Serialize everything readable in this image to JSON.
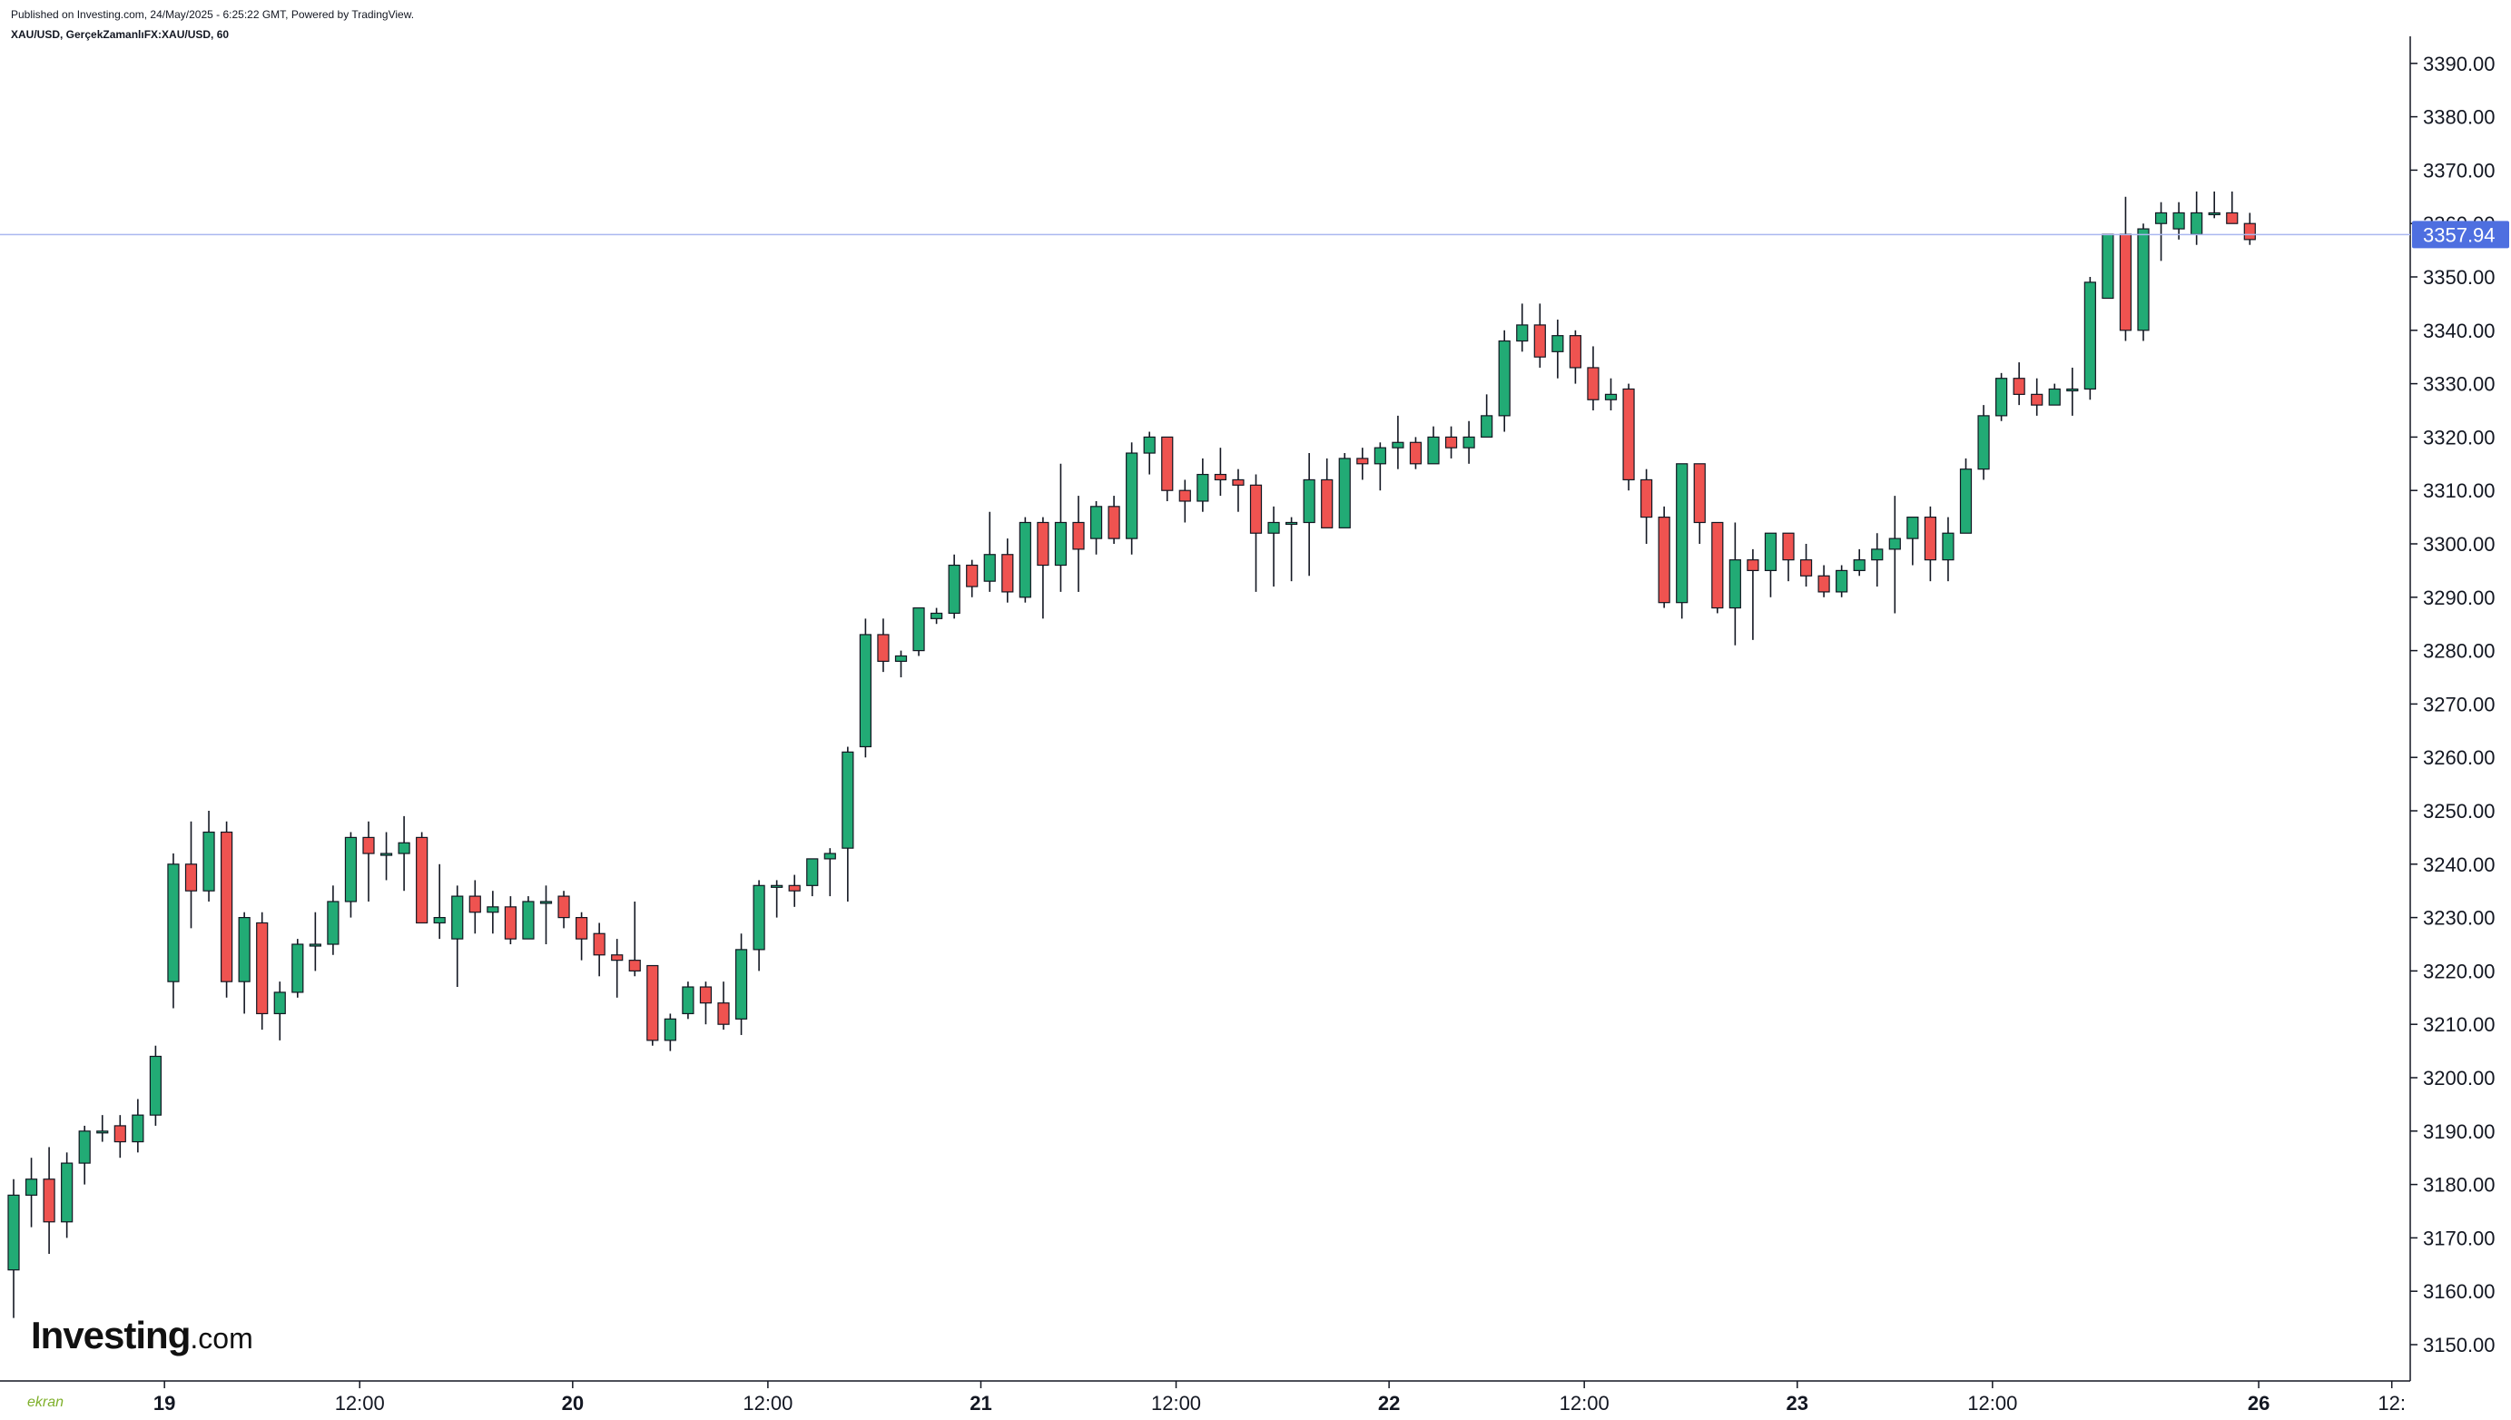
{
  "header": {
    "published": "Published on Investing.com, 24/May/2025 - 6:25:22 GMT, Powered by TradingView.",
    "symbol": "XAU/USD, GerçekZamanlıFX:XAU/USD, 60"
  },
  "logo": {
    "brand": "Investing",
    "suffix": ".com"
  },
  "watermark": "ekran",
  "colors": {
    "up": "#22ab75",
    "down": "#ef5350",
    "wick": "#131722",
    "price_line": "#aab7f0",
    "price_badge": "#4e6fe0"
  },
  "chart_data": {
    "type": "candlestick",
    "symbol": "XAU/USD",
    "interval": "60",
    "last_price": 3357.94,
    "last_price_label": "3357.94",
    "y_axis": {
      "ylim": [
        3145,
        3392
      ],
      "ticks": [
        "3150.00",
        "3160.00",
        "3170.00",
        "3180.00",
        "3190.00",
        "3200.00",
        "3210.00",
        "3220.00",
        "3230.00",
        "3240.00",
        "3250.00",
        "3260.00",
        "3270.00",
        "3280.00",
        "3290.00",
        "3300.00",
        "3310.00",
        "3320.00",
        "3330.00",
        "3340.00",
        "3350.00",
        "3360.00",
        "3370.00",
        "3380.00",
        "3390.00"
      ]
    },
    "x_axis": {
      "labels": [
        {
          "label": "19",
          "at": 8.5,
          "bold": true
        },
        {
          "label": "12:00",
          "at": 19.5,
          "bold": false
        },
        {
          "label": "20",
          "at": 31.5,
          "bold": true
        },
        {
          "label": "12:00",
          "at": 42.5,
          "bold": false
        },
        {
          "label": "21",
          "at": 54.5,
          "bold": true
        },
        {
          "label": "12:00",
          "at": 65.5,
          "bold": false
        },
        {
          "label": "22",
          "at": 77.5,
          "bold": true
        },
        {
          "label": "12:00",
          "at": 88.5,
          "bold": false
        },
        {
          "label": "23",
          "at": 100.5,
          "bold": true
        },
        {
          "label": "12:00",
          "at": 111.5,
          "bold": false
        },
        {
          "label": "26",
          "at": 126.5,
          "bold": true
        },
        {
          "label": "12:",
          "at": 134,
          "bold": false
        }
      ]
    },
    "ohlc": [
      [
        3164,
        3181,
        3155,
        3178
      ],
      [
        3178,
        3185,
        3172,
        3181
      ],
      [
        3181,
        3187,
        3167,
        3173
      ],
      [
        3173,
        3186,
        3170,
        3184
      ],
      [
        3184,
        3191,
        3180,
        3190
      ],
      [
        3190,
        3193,
        3188,
        3190
      ],
      [
        3191,
        3193,
        3185,
        3188
      ],
      [
        3188,
        3196,
        3186,
        3193
      ],
      [
        3193,
        3206,
        3191,
        3204
      ],
      [
        3218,
        3242,
        3213,
        3240
      ],
      [
        3240,
        3248,
        3228,
        3235
      ],
      [
        3235,
        3250,
        3233,
        3246
      ],
      [
        3246,
        3248,
        3215,
        3218
      ],
      [
        3218,
        3231,
        3212,
        3230
      ],
      [
        3229,
        3231,
        3209,
        3212
      ],
      [
        3212,
        3218,
        3207,
        3216
      ],
      [
        3216,
        3226,
        3215,
        3225
      ],
      [
        3225,
        3231,
        3220,
        3225
      ],
      [
        3225,
        3236,
        3223,
        3233
      ],
      [
        3233,
        3246,
        3230,
        3245
      ],
      [
        3245,
        3248,
        3233,
        3242
      ],
      [
        3242,
        3246,
        3237,
        3242
      ],
      [
        3242,
        3249,
        3235,
        3244
      ],
      [
        3245,
        3246,
        3229,
        3229
      ],
      [
        3229,
        3240,
        3226,
        3230
      ],
      [
        3226,
        3236,
        3217,
        3234
      ],
      [
        3234,
        3237,
        3227,
        3231
      ],
      [
        3231,
        3235,
        3227,
        3232
      ],
      [
        3232,
        3234,
        3225,
        3226
      ],
      [
        3226,
        3234,
        3226,
        3233
      ],
      [
        3233,
        3236,
        3225,
        3233
      ],
      [
        3234,
        3235,
        3228,
        3230
      ],
      [
        3230,
        3231,
        3222,
        3226
      ],
      [
        3227,
        3229,
        3219,
        3223
      ],
      [
        3223,
        3226,
        3215,
        3222
      ],
      [
        3222,
        3233,
        3219,
        3220
      ],
      [
        3221,
        3221,
        3206,
        3207
      ],
      [
        3207,
        3212,
        3205,
        3211
      ],
      [
        3212,
        3218,
        3211,
        3217
      ],
      [
        3217,
        3218,
        3210,
        3214
      ],
      [
        3214,
        3218,
        3209,
        3210
      ],
      [
        3211,
        3227,
        3208,
        3224
      ],
      [
        3224,
        3237,
        3220,
        3236
      ],
      [
        3236,
        3237,
        3230,
        3236
      ],
      [
        3236,
        3238,
        3232,
        3235
      ],
      [
        3236,
        3241,
        3234,
        3241
      ],
      [
        3241,
        3243,
        3234,
        3242
      ],
      [
        3243,
        3262,
        3233,
        3261
      ],
      [
        3262,
        3286,
        3260,
        3283
      ],
      [
        3283,
        3286,
        3276,
        3278
      ],
      [
        3278,
        3280,
        3275,
        3279
      ],
      [
        3280,
        3288,
        3279,
        3288
      ],
      [
        3286,
        3288,
        3285,
        3287
      ],
      [
        3287,
        3298,
        3286,
        3296
      ],
      [
        3296,
        3297,
        3290,
        3292
      ],
      [
        3293,
        3306,
        3291,
        3298
      ],
      [
        3298,
        3301,
        3289,
        3291
      ],
      [
        3290,
        3305,
        3289,
        3304
      ],
      [
        3304,
        3305,
        3286,
        3296
      ],
      [
        3296,
        3315,
        3291,
        3304
      ],
      [
        3304,
        3309,
        3291,
        3299
      ],
      [
        3301,
        3308,
        3298,
        3307
      ],
      [
        3307,
        3309,
        3300,
        3301
      ],
      [
        3301,
        3319,
        3298,
        3317
      ],
      [
        3317,
        3321,
        3313,
        3320
      ],
      [
        3320,
        3320,
        3308,
        3310
      ],
      [
        3310,
        3312,
        3304,
        3308
      ],
      [
        3308,
        3316,
        3306,
        3313
      ],
      [
        3313,
        3318,
        3309,
        3312
      ],
      [
        3312,
        3314,
        3306,
        3311
      ],
      [
        3311,
        3313,
        3291,
        3302
      ],
      [
        3302,
        3307,
        3292,
        3304
      ],
      [
        3304,
        3305,
        3293,
        3304
      ],
      [
        3304,
        3317,
        3294,
        3312
      ],
      [
        3312,
        3316,
        3303,
        3303
      ],
      [
        3303,
        3317,
        3303,
        3316
      ],
      [
        3316,
        3318,
        3312,
        3315
      ],
      [
        3315,
        3319,
        3310,
        3318
      ],
      [
        3318,
        3324,
        3314,
        3319
      ],
      [
        3319,
        3320,
        3314,
        3315
      ],
      [
        3315,
        3322,
        3317,
        3320
      ],
      [
        3320,
        3322,
        3316,
        3318
      ],
      [
        3318,
        3323,
        3315,
        3320
      ],
      [
        3320,
        3328,
        3321,
        3324
      ],
      [
        3324,
        3340,
        3321,
        3338
      ],
      [
        3338,
        3345,
        3336,
        3341
      ],
      [
        3341,
        3345,
        3333,
        3335
      ],
      [
        3336,
        3342,
        3331,
        3339
      ],
      [
        3339,
        3340,
        3330,
        3333
      ],
      [
        3333,
        3337,
        3325,
        3327
      ],
      [
        3327,
        3331,
        3325,
        3328
      ],
      [
        3329,
        3330,
        3310,
        3312
      ],
      [
        3312,
        3314,
        3300,
        3305
      ],
      [
        3305,
        3307,
        3288,
        3289
      ],
      [
        3289,
        3315,
        3286,
        3315
      ],
      [
        3315,
        3315,
        3300,
        3304
      ],
      [
        3304,
        3304,
        3287,
        3288
      ],
      [
        3288,
        3304,
        3281,
        3297
      ],
      [
        3297,
        3299,
        3282,
        3295
      ],
      [
        3295,
        3302,
        3290,
        3302
      ],
      [
        3302,
        3302,
        3293,
        3297
      ],
      [
        3297,
        3300,
        3292,
        3294
      ],
      [
        3294,
        3296,
        3290,
        3291
      ],
      [
        3291,
        3296,
        3290,
        3295
      ],
      [
        3295,
        3299,
        3294,
        3297
      ],
      [
        3297,
        3302,
        3292,
        3299
      ],
      [
        3299,
        3309,
        3287,
        3301
      ],
      [
        3301,
        3305,
        3296,
        3305
      ],
      [
        3305,
        3307,
        3293,
        3297
      ],
      [
        3297,
        3305,
        3293,
        3302
      ],
      [
        3302,
        3316,
        3302,
        3314
      ],
      [
        3314,
        3326,
        3312,
        3324
      ],
      [
        3324,
        3332,
        3323,
        3331
      ],
      [
        3331,
        3334,
        3326,
        3328
      ],
      [
        3328,
        3331,
        3324,
        3326
      ],
      [
        3326,
        3330,
        3326,
        3329
      ],
      [
        3329,
        3333,
        3324,
        3329
      ],
      [
        3329,
        3350,
        3327,
        3349
      ],
      [
        3346,
        3358,
        3346,
        3358
      ],
      [
        3358,
        3365,
        3338,
        3340
      ],
      [
        3340,
        3360,
        3338,
        3359
      ],
      [
        3360,
        3364,
        3353,
        3362
      ],
      [
        3359,
        3364,
        3357,
        3362
      ],
      [
        3358,
        3366,
        3356,
        3362
      ],
      [
        3362,
        3366,
        3361,
        3362
      ],
      [
        3362,
        3366,
        3360,
        3360
      ],
      [
        3360,
        3362,
        3356,
        3357
      ]
    ]
  }
}
